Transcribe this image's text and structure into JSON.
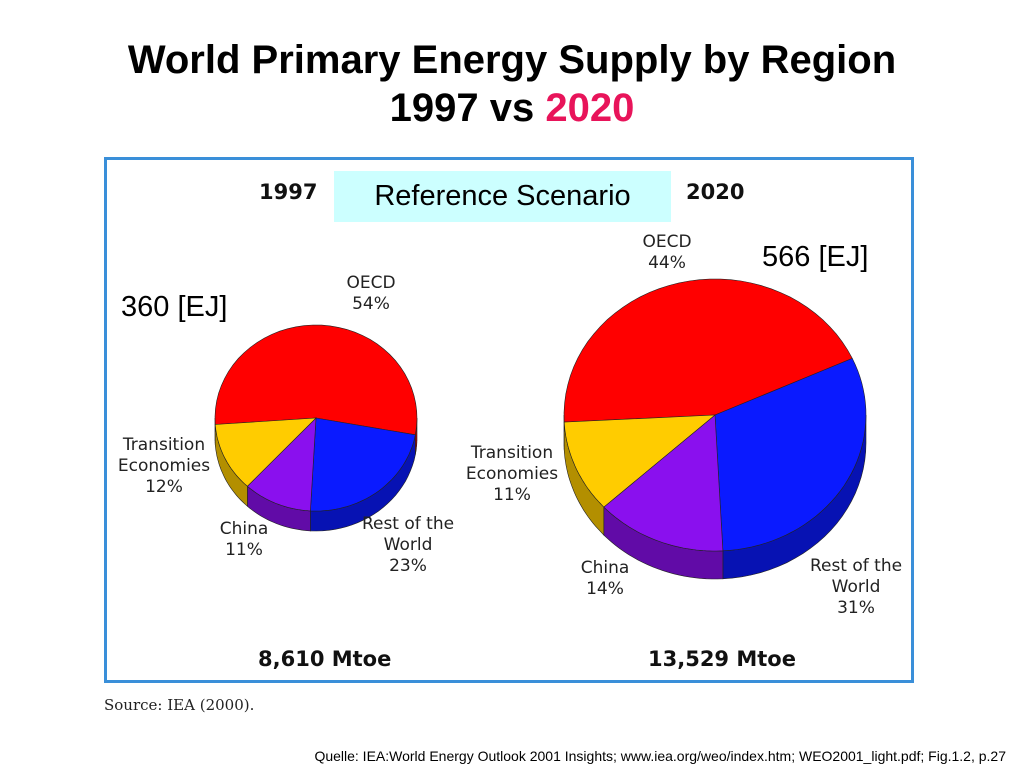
{
  "title": {
    "line1": "World Primary Energy Supply by Region",
    "line2_prefix": "1997 vs ",
    "line2_highlight": "2020"
  },
  "reference_box": "Reference Scenario",
  "source_note": "Source: IEA (2000).",
  "footer": "Quelle: IEA:World Energy Outlook 2001 Insights; www.iea.org/weo/index.htm;  WEO2001_light.pdf; Fig.1.2, p.27",
  "colors": {
    "OECD": "#ff0000",
    "Rest of the World": "#0a1aff",
    "China": "#8a10ee",
    "Transition Economies": "#ffcc00",
    "highlight": "#e8145a",
    "frame": "#3a8fd9",
    "box": "#ccffff"
  },
  "chart_data": [
    {
      "type": "pie",
      "year": "1997",
      "energy_label": "360 [EJ]",
      "total_label": "8,610 Mtoe",
      "slices": [
        {
          "name": "OECD",
          "label": "OECD",
          "pct_label": "54%",
          "value": 54
        },
        {
          "name": "Rest of the World",
          "label": "Rest of the\nWorld",
          "pct_label": "23%",
          "value": 23
        },
        {
          "name": "China",
          "label": "China",
          "pct_label": "11%",
          "value": 11
        },
        {
          "name": "Transition Economies",
          "label": "Transition\nEconomies",
          "pct_label": "12%",
          "value": 12
        }
      ]
    },
    {
      "type": "pie",
      "year": "2020",
      "energy_label": "566 [EJ]",
      "total_label": "13,529 Mtoe",
      "slices": [
        {
          "name": "OECD",
          "label": "OECD",
          "pct_label": "44%",
          "value": 44
        },
        {
          "name": "Rest of the World",
          "label": "Rest of the\nWorld",
          "pct_label": "31%",
          "value": 31
        },
        {
          "name": "China",
          "label": "China",
          "pct_label": "14%",
          "value": 14
        },
        {
          "name": "Transition Economies",
          "label": "Transition\nEconomies",
          "pct_label": "11%",
          "value": 11
        }
      ]
    }
  ]
}
